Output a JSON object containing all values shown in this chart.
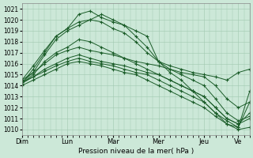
{
  "bg_color": "#cce8d8",
  "grid_color": "#a0c8b0",
  "line_color": "#1a5c28",
  "marker": "+",
  "xlabel": "Pression niveau de la mer( hPa )",
  "ylim": [
    1009.5,
    1021.5
  ],
  "yticks": [
    1010,
    1011,
    1012,
    1013,
    1014,
    1015,
    1016,
    1017,
    1018,
    1019,
    1020,
    1021
  ],
  "day_positions": [
    0,
    48,
    96,
    144,
    192,
    228
  ],
  "day_labels": [
    "Dim",
    "Lun",
    "Mar",
    "Mer",
    "Jeu",
    "Ve"
  ],
  "total_hours": 240,
  "series": [
    {
      "x": [
        0,
        12,
        24,
        36,
        48,
        60,
        72,
        84,
        96,
        108,
        120,
        132,
        144,
        156,
        168,
        180,
        192,
        204,
        216,
        228,
        240
      ],
      "y": [
        1014.2,
        1015.5,
        1017.0,
        1018.5,
        1019.2,
        1020.5,
        1020.8,
        1020.2,
        1019.8,
        1019.5,
        1019.0,
        1018.5,
        1016.2,
        1015.8,
        1015.5,
        1015.2,
        1015.0,
        1014.8,
        1014.5,
        1015.2,
        1015.5
      ]
    },
    {
      "x": [
        0,
        12,
        24,
        36,
        48,
        60,
        72,
        84,
        96,
        108,
        120,
        132,
        144,
        156,
        168,
        180,
        192,
        204,
        216,
        228,
        240
      ],
      "y": [
        1014.3,
        1015.2,
        1016.8,
        1018.2,
        1019.0,
        1019.5,
        1020.0,
        1019.8,
        1019.2,
        1018.8,
        1018.0,
        1017.0,
        1016.2,
        1015.5,
        1015.0,
        1014.5,
        1014.0,
        1012.8,
        1011.5,
        1010.8,
        1011.2
      ]
    },
    {
      "x": [
        0,
        12,
        24,
        36,
        48,
        60,
        72,
        84,
        96,
        108,
        120,
        132,
        144,
        156,
        168,
        180,
        192,
        204,
        216,
        228,
        240
      ],
      "y": [
        1014.5,
        1015.8,
        1017.2,
        1018.5,
        1019.2,
        1019.8,
        1020.0,
        1020.5,
        1020.0,
        1019.5,
        1018.5,
        1017.5,
        1016.2,
        1015.2,
        1014.5,
        1013.5,
        1012.5,
        1011.5,
        1010.5,
        1010.0,
        1010.2
      ]
    },
    {
      "x": [
        0,
        12,
        24,
        36,
        48,
        60,
        72,
        84,
        96,
        108,
        120,
        132,
        144,
        156,
        168,
        180,
        192,
        204,
        216,
        228,
        240
      ],
      "y": [
        1014.2,
        1015.0,
        1016.2,
        1017.0,
        1017.5,
        1018.2,
        1018.0,
        1017.5,
        1017.0,
        1016.5,
        1016.0,
        1015.5,
        1015.0,
        1014.5,
        1014.0,
        1013.5,
        1013.0,
        1012.0,
        1011.0,
        1010.5,
        1011.0
      ]
    },
    {
      "x": [
        0,
        12,
        24,
        36,
        48,
        60,
        72,
        84,
        96,
        108,
        120,
        132,
        144,
        156,
        168,
        180,
        192,
        204,
        216,
        228,
        240
      ],
      "y": [
        1014.5,
        1015.2,
        1016.0,
        1016.8,
        1017.2,
        1017.5,
        1017.2,
        1017.0,
        1016.8,
        1016.5,
        1016.2,
        1016.0,
        1015.8,
        1015.5,
        1015.2,
        1015.0,
        1014.8,
        1014.0,
        1012.8,
        1012.0,
        1012.5
      ]
    },
    {
      "x": [
        0,
        12,
        24,
        36,
        48,
        60,
        72,
        84,
        96,
        108,
        120,
        132,
        144,
        156,
        168,
        180,
        192,
        204,
        216,
        228,
        240
      ],
      "y": [
        1014.3,
        1014.8,
        1015.5,
        1016.0,
        1016.5,
        1016.8,
        1016.5,
        1016.2,
        1016.0,
        1015.8,
        1015.5,
        1015.2,
        1015.0,
        1014.5,
        1014.0,
        1013.5,
        1013.0,
        1012.0,
        1011.0,
        1010.5,
        1011.5
      ]
    },
    {
      "x": [
        0,
        12,
        24,
        36,
        48,
        60,
        72,
        84,
        96,
        108,
        120,
        132,
        144,
        156,
        168,
        180,
        192,
        204,
        216,
        228,
        240
      ],
      "y": [
        1014.0,
        1014.5,
        1015.0,
        1015.5,
        1016.0,
        1016.2,
        1016.0,
        1015.8,
        1015.5,
        1015.2,
        1015.0,
        1014.5,
        1014.0,
        1013.5,
        1013.0,
        1012.5,
        1012.0,
        1011.2,
        1010.5,
        1010.2,
        1012.5
      ]
    },
    {
      "x": [
        0,
        12,
        24,
        36,
        48,
        60,
        72,
        84,
        96,
        108,
        120,
        132,
        144,
        156,
        168,
        180,
        192,
        204,
        216,
        228,
        240
      ],
      "y": [
        1014.2,
        1014.8,
        1015.3,
        1015.8,
        1016.2,
        1016.5,
        1016.2,
        1016.0,
        1015.8,
        1015.5,
        1015.2,
        1015.0,
        1014.5,
        1014.0,
        1013.5,
        1013.0,
        1012.5,
        1011.5,
        1010.8,
        1010.2,
        1013.5
      ]
    }
  ]
}
